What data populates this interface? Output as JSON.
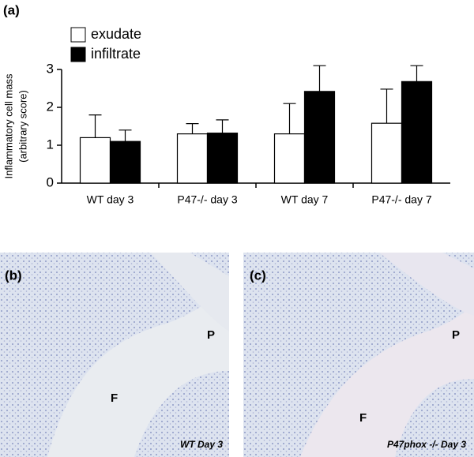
{
  "chart_data": {
    "type": "bar",
    "panel_label": "(a)",
    "ylabel": [
      "Inflammatory cell mass",
      "(arbitrary score)"
    ],
    "categories": [
      "WT day 3",
      "P47-/- day 3",
      "WT day 7",
      "P47-/- day 7"
    ],
    "series": [
      {
        "name": "exudate",
        "color": "#ffffff",
        "values": [
          1.2,
          1.3,
          1.3,
          1.58
        ],
        "errors": [
          0.6,
          0.27,
          0.8,
          0.9
        ]
      },
      {
        "name": "infiltrate",
        "color": "#000000",
        "values": [
          1.1,
          1.32,
          2.42,
          2.68
        ],
        "errors": [
          0.3,
          0.35,
          0.68,
          0.42
        ]
      }
    ],
    "ylim": [
      0,
      3
    ],
    "yticks": [
      0,
      1,
      2,
      3
    ],
    "grid": false
  },
  "images": [
    {
      "panel_label": "(b)",
      "labels": [
        "P",
        "F"
      ],
      "caption": "WT Day 3"
    },
    {
      "panel_label": "(c)",
      "labels": [
        "P",
        "F"
      ],
      "caption": "P47phox -/- Day 3"
    }
  ]
}
